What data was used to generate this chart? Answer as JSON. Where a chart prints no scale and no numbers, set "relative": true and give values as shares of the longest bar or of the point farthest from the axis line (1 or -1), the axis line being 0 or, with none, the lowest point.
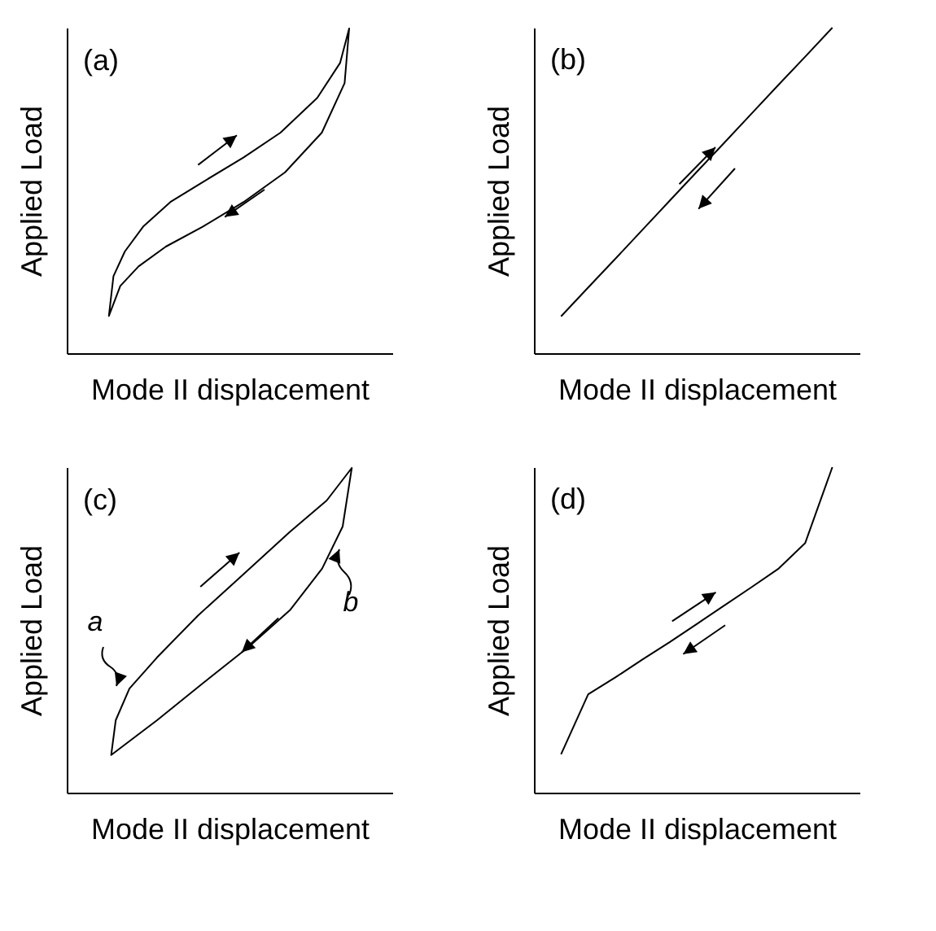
{
  "chart_data": [
    {
      "type": "other",
      "title": "(a)",
      "xlabel": "Mode II displacement",
      "ylabel": "Applied Load"
    },
    {
      "type": "line",
      "title": "(b)",
      "xlabel": "Mode II displacement",
      "ylabel": "Applied Load",
      "relative": true,
      "categories": [
        null,
        null,
        null,
        null,
        null,
        null,
        null,
        null,
        null,
        null,
        null
      ],
      "series": [
        {
          "color": "#000000",
          "values": [
            0.113,
            0.202,
            0.29,
            0.379,
            0.468,
            0.557,
            0.645,
            0.734,
            0.823,
            0.911,
            1
          ]
        }
      ]
    },
    {
      "type": "other",
      "title": "(c)",
      "xlabel": "Mode II displacement",
      "ylabel": "Applied Load",
      "annotations": [
        "a",
        "b"
      ]
    },
    {
      "type": "line",
      "title": "(d)",
      "xlabel": "Mode II displacement",
      "ylabel": "Applied Load",
      "relative": true,
      "categories": [
        null,
        null,
        null,
        null,
        null,
        null,
        null,
        null,
        null,
        null,
        null
      ],
      "series": [
        {
          "color": "#000000",
          "values": [
            0.118,
            0.302,
            0.354,
            0.409,
            0.462,
            0.518,
            0.574,
            0.63,
            0.687,
            0.767,
            1
          ]
        }
      ]
    }
  ]
}
